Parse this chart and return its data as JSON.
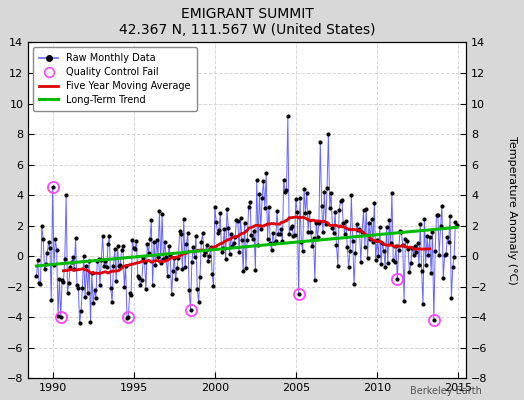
{
  "title": "EMIGRANT SUMMIT",
  "subtitle": "42.367 N, 111.567 W (United States)",
  "ylabel_right": "Temperature Anomaly (°C)",
  "watermark": "Berkeley Earth",
  "xlim": [
    1988.5,
    2015.5
  ],
  "ylim": [
    -8,
    14
  ],
  "yticks": [
    -8,
    -6,
    -4,
    -2,
    0,
    2,
    4,
    6,
    8,
    10,
    12,
    14
  ],
  "xticks": [
    1990,
    1995,
    2000,
    2005,
    2010,
    2015
  ],
  "plot_bg": "#ffffff",
  "fig_bg": "#d8d8d8",
  "grid_color": "#cccccc",
  "line_color": "#6666ff",
  "dot_color": "#000000",
  "ma_color": "#dd0000",
  "trend_color": "#00bb00",
  "qc_color": "#ff44ff",
  "seed": 12345,
  "start_year": 1989.0,
  "end_year": 2014.92
}
